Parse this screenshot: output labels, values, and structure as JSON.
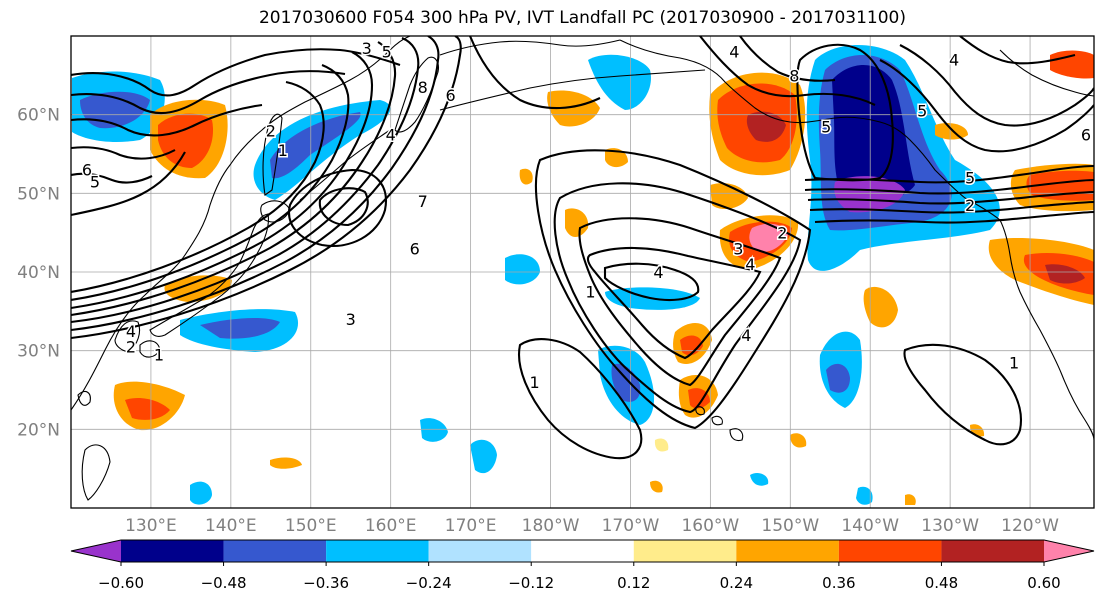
{
  "title": "2017030600 F054 300 hPa PV, IVT Landfall PC (2017030900 - 2017031100)",
  "colors": {
    "frame": "#000000",
    "grid": "#a9a9a9",
    "coast": "#000000",
    "contour": "#000000",
    "lat_label": "#808080",
    "lon_label": "#808080"
  },
  "map": {
    "lat_labels": [
      {
        "text": "60°N",
        "lat": 60
      },
      {
        "text": "50°N",
        "lat": 50
      },
      {
        "text": "40°N",
        "lat": 40
      },
      {
        "text": "30°N",
        "lat": 30
      },
      {
        "text": "20°N",
        "lat": 20
      }
    ],
    "lon_labels": [
      {
        "text": "130°E",
        "lon": 130
      },
      {
        "text": "140°E",
        "lon": 140
      },
      {
        "text": "150°E",
        "lon": 150
      },
      {
        "text": "160°E",
        "lon": 160
      },
      {
        "text": "170°E",
        "lon": 170
      },
      {
        "text": "180°W",
        "lon": 180
      },
      {
        "text": "170°W",
        "lon": 190
      },
      {
        "text": "160°W",
        "lon": 200
      },
      {
        "text": "150°W",
        "lon": 210
      },
      {
        "text": "140°W",
        "lon": 220
      },
      {
        "text": "130°W",
        "lon": 230
      },
      {
        "text": "120°W",
        "lon": 240
      }
    ],
    "contour_labels": [
      {
        "text": "1",
        "lon": 146.5,
        "lat": 55.5
      },
      {
        "text": "2",
        "lon": 145,
        "lat": 58
      },
      {
        "text": "3",
        "lon": 157,
        "lat": 68.5
      },
      {
        "text": "5",
        "lon": 159.5,
        "lat": 68
      },
      {
        "text": "8",
        "lon": 164,
        "lat": 63.5
      },
      {
        "text": "6",
        "lon": 167.5,
        "lat": 62.5
      },
      {
        "text": "4",
        "lon": 160,
        "lat": 57.5
      },
      {
        "text": "7",
        "lon": 164,
        "lat": 49
      },
      {
        "text": "6",
        "lon": 163,
        "lat": 43
      },
      {
        "text": "3",
        "lon": 155,
        "lat": 34
      },
      {
        "text": "4",
        "lon": 127.5,
        "lat": 32.5
      },
      {
        "text": "2",
        "lon": 127.5,
        "lat": 30.5
      },
      {
        "text": "1",
        "lon": 131,
        "lat": 29.5
      },
      {
        "text": "5",
        "lon": 123,
        "lat": 51.5
      },
      {
        "text": "6",
        "lon": 122,
        "lat": 53
      },
      {
        "text": "4",
        "lon": 203,
        "lat": 68
      },
      {
        "text": "8",
        "lon": 210.5,
        "lat": 65
      },
      {
        "text": "5",
        "lon": 214.5,
        "lat": 58.5
      },
      {
        "text": "5",
        "lon": 226.5,
        "lat": 60.5
      },
      {
        "text": "4",
        "lon": 230.5,
        "lat": 67
      },
      {
        "text": "6",
        "lon": 247,
        "lat": 57.5
      },
      {
        "text": "5",
        "lon": 232.5,
        "lat": 52
      },
      {
        "text": "2",
        "lon": 232.5,
        "lat": 48.5
      },
      {
        "text": "3",
        "lon": 203.5,
        "lat": 43
      },
      {
        "text": "4",
        "lon": 205,
        "lat": 41
      },
      {
        "text": "2",
        "lon": 209,
        "lat": 45
      },
      {
        "text": "4",
        "lon": 193.5,
        "lat": 40
      },
      {
        "text": "1",
        "lon": 185,
        "lat": 37.5
      },
      {
        "text": "1",
        "lon": 178,
        "lat": 26
      },
      {
        "text": "4",
        "lon": 204.5,
        "lat": 32
      },
      {
        "text": "1",
        "lon": 238,
        "lat": 28.5
      }
    ]
  },
  "colorbar": {
    "colors": [
      "#9933cc",
      "#00008b",
      "#3658cf",
      "#00bfff",
      "#b0e2ff",
      "#ffffff",
      "#ffec8b",
      "#ffa500",
      "#ff4500",
      "#b22222",
      "#ff82ab"
    ],
    "ticks": [
      "−0.60",
      "−0.48",
      "−0.36",
      "−0.24",
      "−0.12",
      "0.12",
      "0.24",
      "0.36",
      "0.48",
      "0.60"
    ]
  }
}
